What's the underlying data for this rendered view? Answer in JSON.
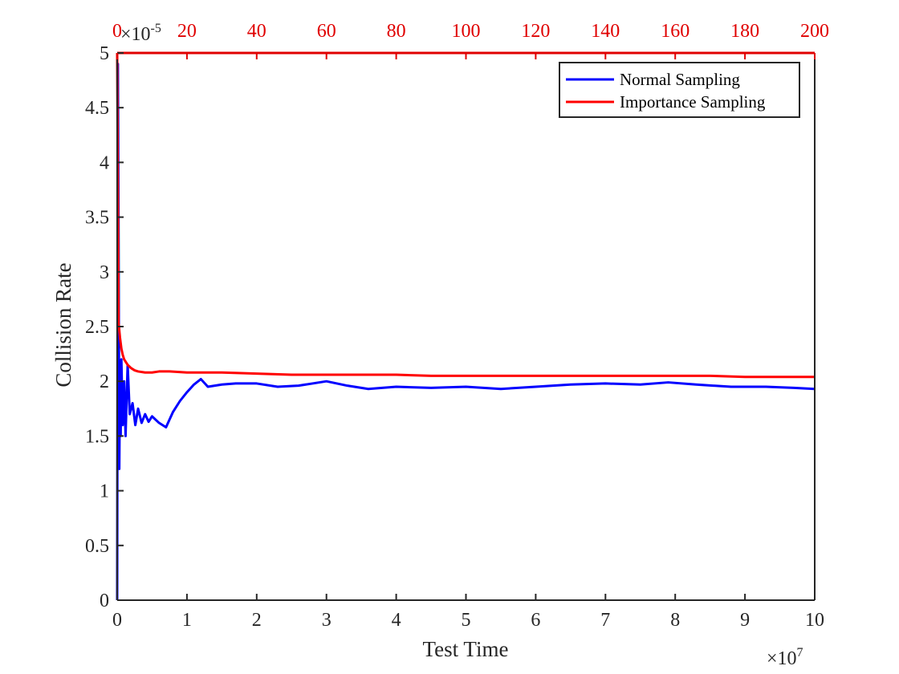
{
  "chart_data": {
    "type": "line",
    "title": "",
    "xlabel": "Test Time",
    "ylabel": "Collision Rate",
    "x_multiplier": "×10",
    "x_multiplier_exp": "7",
    "y_multiplier": "×10",
    "y_multiplier_exp": "-5",
    "xlim": [
      0,
      10
    ],
    "ylim": [
      0,
      5
    ],
    "x2lim": [
      0,
      200
    ],
    "grid": false,
    "legend_position": "top-right",
    "x_ticks": [
      "0",
      "1",
      "2",
      "3",
      "4",
      "5",
      "6",
      "7",
      "8",
      "9",
      "10"
    ],
    "y_ticks": [
      "0",
      "0.5",
      "1",
      "1.5",
      "2",
      "2.5",
      "3",
      "3.5",
      "4",
      "4.5",
      "5"
    ],
    "x2_ticks": [
      "0",
      "20",
      "40",
      "60",
      "80",
      "100",
      "120",
      "140",
      "160",
      "180",
      "200"
    ],
    "series": [
      {
        "name": "Normal Sampling",
        "color": "#0000ff",
        "axis": "bottom",
        "x": [
          0.0,
          0.01,
          0.02,
          0.03,
          0.04,
          0.05,
          0.06,
          0.08,
          0.1,
          0.12,
          0.15,
          0.18,
          0.22,
          0.26,
          0.3,
          0.35,
          0.4,
          0.45,
          0.5,
          0.6,
          0.7,
          0.8,
          0.9,
          1.0,
          1.1,
          1.2,
          1.3,
          1.5,
          1.7,
          2.0,
          2.3,
          2.6,
          3.0,
          3.3,
          3.6,
          4.0,
          4.5,
          5.0,
          5.5,
          6.0,
          6.5,
          7.0,
          7.5,
          7.9,
          8.3,
          8.8,
          9.3,
          9.7,
          10.0
        ],
        "y": [
          0.0,
          4.9,
          3.3,
          1.2,
          2.1,
          1.5,
          2.2,
          1.6,
          2.0,
          1.5,
          2.15,
          1.7,
          1.8,
          1.6,
          1.75,
          1.62,
          1.7,
          1.63,
          1.68,
          1.62,
          1.58,
          1.72,
          1.82,
          1.9,
          1.97,
          2.02,
          1.95,
          1.97,
          1.98,
          1.98,
          1.95,
          1.96,
          2.0,
          1.96,
          1.93,
          1.95,
          1.94,
          1.95,
          1.93,
          1.95,
          1.97,
          1.98,
          1.97,
          1.99,
          1.97,
          1.95,
          1.95,
          1.94,
          1.93
        ]
      },
      {
        "name": "Importance Sampling",
        "color": "#ff0000",
        "axis": "top",
        "x": [
          0,
          0.4,
          0.8,
          1.2,
          1.6,
          2,
          3,
          4,
          5,
          6,
          8,
          10,
          12,
          15,
          20,
          25,
          30,
          40,
          50,
          60,
          70,
          80,
          90,
          100,
          110,
          120,
          130,
          140,
          150,
          160,
          170,
          180,
          190,
          200
        ],
        "y": [
          5.0,
          2.53,
          2.4,
          2.3,
          2.24,
          2.2,
          2.15,
          2.12,
          2.1,
          2.09,
          2.08,
          2.08,
          2.09,
          2.09,
          2.08,
          2.08,
          2.08,
          2.07,
          2.06,
          2.06,
          2.06,
          2.06,
          2.05,
          2.05,
          2.05,
          2.05,
          2.05,
          2.05,
          2.05,
          2.05,
          2.05,
          2.04,
          2.04,
          2.04
        ]
      }
    ]
  },
  "colors": {
    "axis": "#262626",
    "top_axis": "#e00000",
    "normal": "#0000ff",
    "importance": "#ff0000"
  }
}
